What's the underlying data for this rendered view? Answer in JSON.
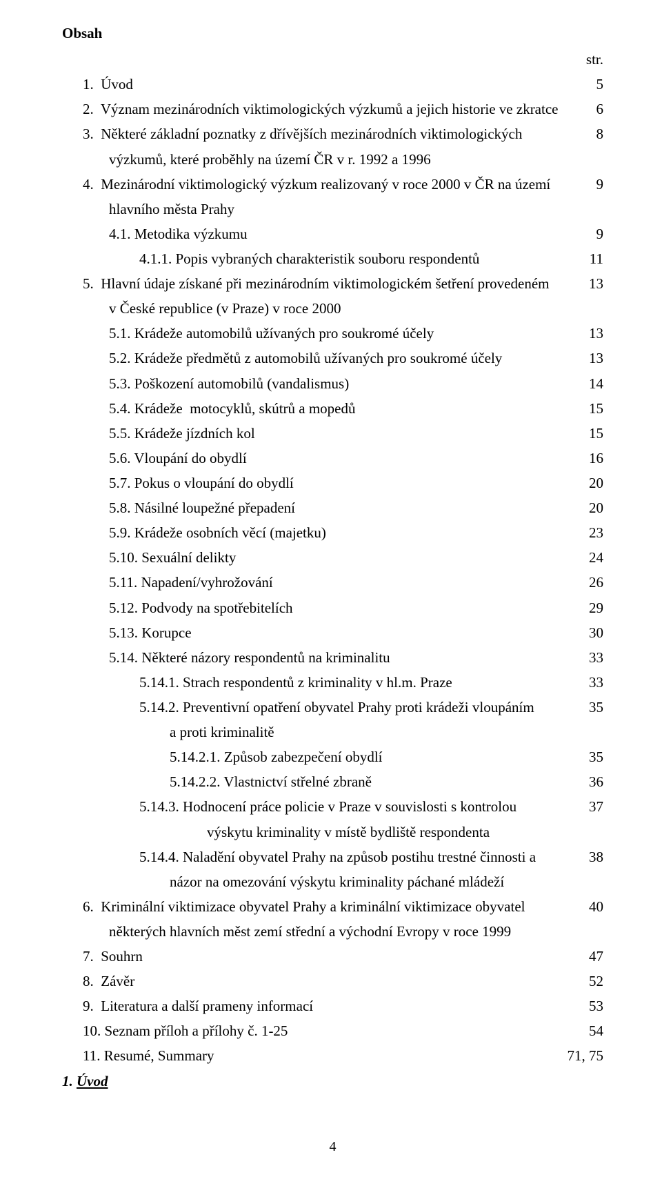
{
  "title": "Obsah",
  "str_label": "str.",
  "footer_page": "4",
  "heading_uvod_num": "1. ",
  "heading_uvod_text": "Úvod",
  "toc": [
    {
      "indent": 1,
      "label": "1.  Úvod",
      "page": "5"
    },
    {
      "indent": 1,
      "label": "2.  Význam mezinárodních viktimologických výzkumů a jejich historie ve zkratce",
      "page": "6"
    },
    {
      "indent": 1,
      "label": "3.  Některé základní poznatky z dřívějších mezinárodních viktimologických",
      "page": "8"
    },
    {
      "indent": 2,
      "label": "výzkumů, které proběhly na území ČR v r. 1992 a 1996",
      "page": ""
    },
    {
      "indent": 1,
      "label": "4.  Mezinárodní viktimologický výzkum realizovaný v roce 2000 v ČR na území",
      "page": "9"
    },
    {
      "indent": 2,
      "label": "hlavního města Prahy",
      "page": ""
    },
    {
      "indent": 2,
      "label": "4.1. Metodika výzkumu",
      "page": "9"
    },
    {
      "indent": 3,
      "label": "4.1.1. Popis vybraných charakteristik souboru respondentů",
      "page": "11"
    },
    {
      "indent": 1,
      "label": "5.  Hlavní údaje získané při mezinárodním viktimologickém šetření provedeném",
      "page": "13"
    },
    {
      "indent": 2,
      "label": "v České republice (v Praze) v roce 2000",
      "page": ""
    },
    {
      "indent": 2,
      "label": "5.1. Krádeže automobilů užívaných pro soukromé účely",
      "page": "13"
    },
    {
      "indent": 2,
      "label": "5.2. Krádeže předmětů z automobilů užívaných pro soukromé účely",
      "page": "13"
    },
    {
      "indent": 2,
      "label": "5.3. Poškození automobilů (vandalismus)",
      "page": "14"
    },
    {
      "indent": 2,
      "label": "5.4. Krádeže  motocyklů, skútrů a mopedů",
      "page": "15"
    },
    {
      "indent": 2,
      "label": "5.5. Krádeže jízdních kol",
      "page": "15"
    },
    {
      "indent": 2,
      "label": "5.6. Vloupání do obydlí",
      "page": "16"
    },
    {
      "indent": 2,
      "label": "5.7. Pokus o vloupání do obydlí",
      "page": "20"
    },
    {
      "indent": 2,
      "label": "5.8. Násilné loupežné přepadení",
      "page": "20"
    },
    {
      "indent": 2,
      "label": "5.9. Krádeže osobních věcí (majetku)",
      "page": "23"
    },
    {
      "indent": 2,
      "label": "5.10. Sexuální delikty",
      "page": "24"
    },
    {
      "indent": 2,
      "label": "5.11. Napadení/vyhrožování",
      "page": "26"
    },
    {
      "indent": 2,
      "label": "5.12. Podvody na spotřebitelích",
      "page": "29"
    },
    {
      "indent": 2,
      "label": "5.13. Korupce",
      "page": "30"
    },
    {
      "indent": 2,
      "label": "5.14. Některé názory respondentů na kriminalitu",
      "page": "33"
    },
    {
      "indent": 3,
      "label": "5.14.1. Strach respondentů z kriminality v hl.m. Praze",
      "page": "33"
    },
    {
      "indent": 3,
      "label": "5.14.2. Preventivní opatření obyvatel Prahy proti krádeži vloupáním",
      "page": "35"
    },
    {
      "indent": 4,
      "label": "a proti kriminalitě",
      "page": ""
    },
    {
      "indent": 4,
      "label": "5.14.2.1. Způsob zabezpečení obydlí",
      "page": "35"
    },
    {
      "indent": 4,
      "label": "5.14.2.2. Vlastnictví střelné zbraně",
      "page": "36"
    },
    {
      "indent": 3,
      "label": "5.14.3. Hodnocení práce policie v Praze v souvislosti s kontrolou",
      "page": "37"
    },
    {
      "indent": 5,
      "label": "výskytu kriminality v místě bydliště respondenta",
      "page": ""
    },
    {
      "indent": 3,
      "label": "5.14.4. Naladění obyvatel Prahy na způsob postihu trestné činnosti a",
      "page": "38"
    },
    {
      "indent": 4,
      "label": "názor na omezování výskytu kriminality páchané mládeží",
      "page": ""
    },
    {
      "indent": 1,
      "label": "6.  Kriminální viktimizace obyvatel Prahy a kriminální viktimizace obyvatel",
      "page": "40"
    },
    {
      "indent": 2,
      "label": "některých hlavních měst zemí střední a východní Evropy v roce 1999",
      "page": ""
    },
    {
      "indent": 1,
      "label": "7.  Souhrn",
      "page": "47"
    },
    {
      "indent": 1,
      "label": "8.  Závěr",
      "page": "52"
    },
    {
      "indent": 1,
      "label": "9.  Literatura a další prameny informací",
      "page": "53"
    },
    {
      "indent": 1,
      "label": "10. Seznam příloh a přílohy č. 1-25",
      "page": "54"
    },
    {
      "indent": 1,
      "label": "11. Resumé, Summary",
      "page": "71, 75"
    }
  ]
}
